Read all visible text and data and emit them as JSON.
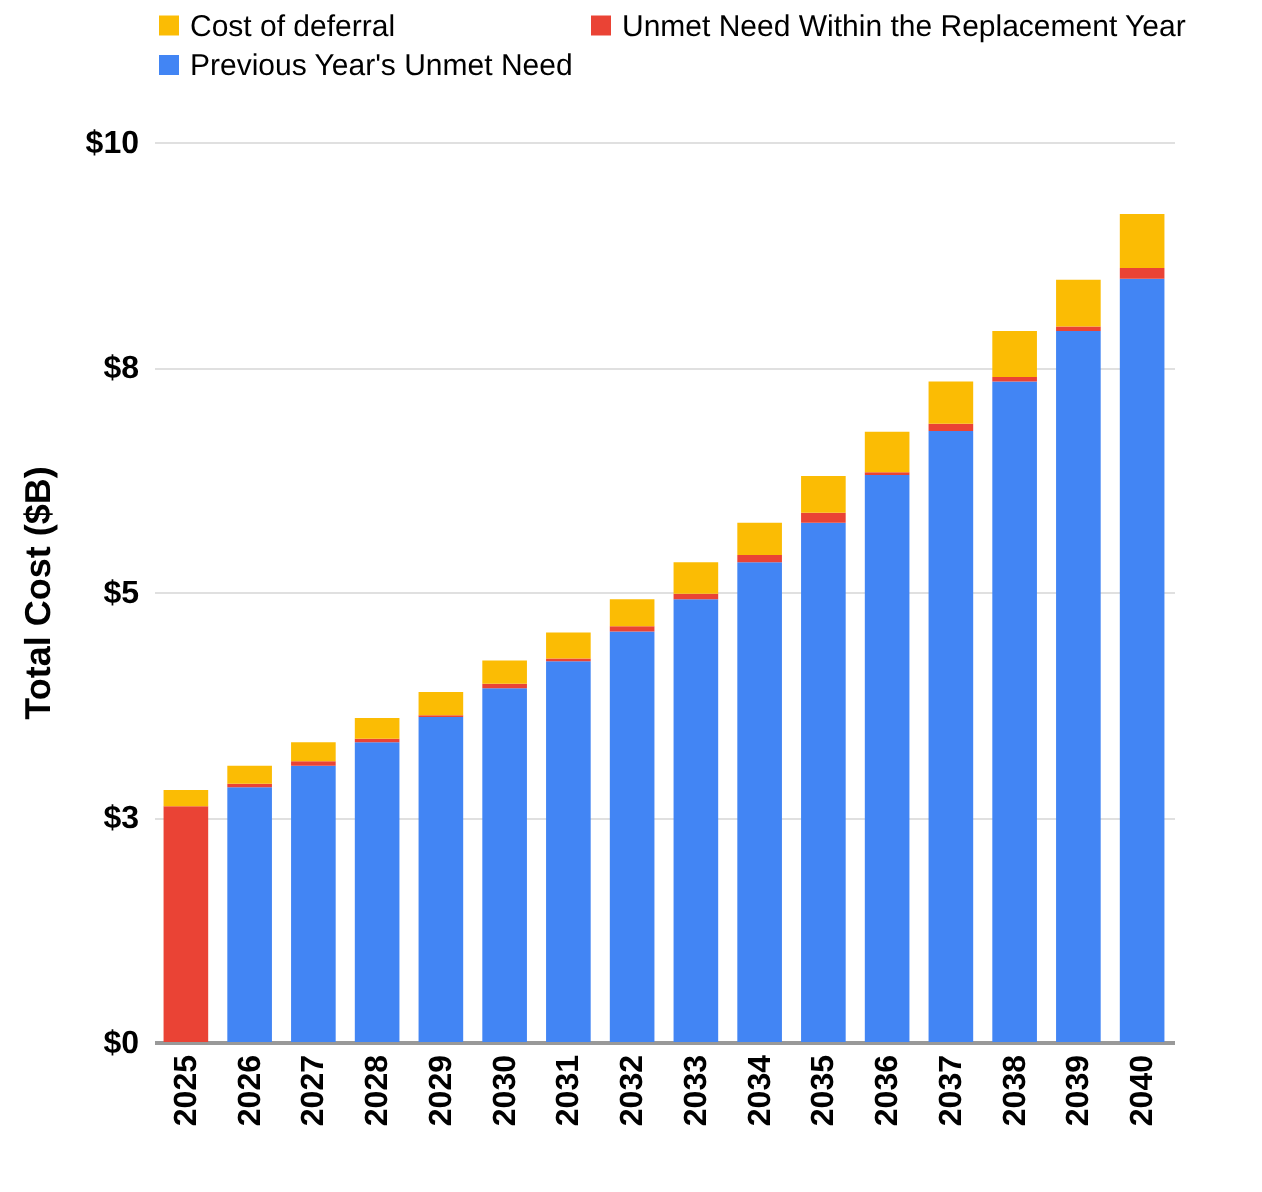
{
  "chart_data": {
    "type": "bar",
    "stacked": true,
    "ylabel": "Total Cost ($B)",
    "legend": "top",
    "grid": "y",
    "categories": [
      "2025",
      "2026",
      "2027",
      "2028",
      "2029",
      "2030",
      "2031",
      "2032",
      "2033",
      "2034",
      "2035",
      "2036",
      "2037",
      "2038",
      "2039",
      "2040"
    ],
    "ylim": [
      0,
      10
    ],
    "yticks": [
      {
        "value": 0,
        "label": "$0"
      },
      {
        "value": 2.5,
        "label": "$3"
      },
      {
        "value": 5,
        "label": "$5"
      },
      {
        "value": 7.5,
        "label": "$8"
      },
      {
        "value": 10,
        "label": "$10"
      }
    ],
    "series": [
      {
        "name": "Previous Year's Unmet Need",
        "color": "#4285f4",
        "values": [
          null,
          2.83,
          3.07,
          3.33,
          3.61,
          3.93,
          4.23,
          4.56,
          4.92,
          5.33,
          5.77,
          6.3,
          6.79,
          7.34,
          7.9,
          8.48
        ]
      },
      {
        "name": "Unmet Need Within the Replacement Year",
        "color": "#ea4335",
        "values": [
          2.62,
          0.04,
          0.05,
          0.04,
          0.02,
          0.05,
          0.03,
          0.06,
          0.06,
          0.08,
          0.11,
          0.03,
          0.08,
          0.05,
          0.05,
          0.12
        ]
      },
      {
        "name": "Cost of deferral",
        "color": "#fbbc04",
        "values": [
          0.18,
          0.2,
          0.21,
          0.23,
          0.26,
          0.26,
          0.29,
          0.3,
          0.35,
          0.36,
          0.41,
          0.45,
          0.47,
          0.51,
          0.52,
          0.6
        ]
      }
    ]
  }
}
